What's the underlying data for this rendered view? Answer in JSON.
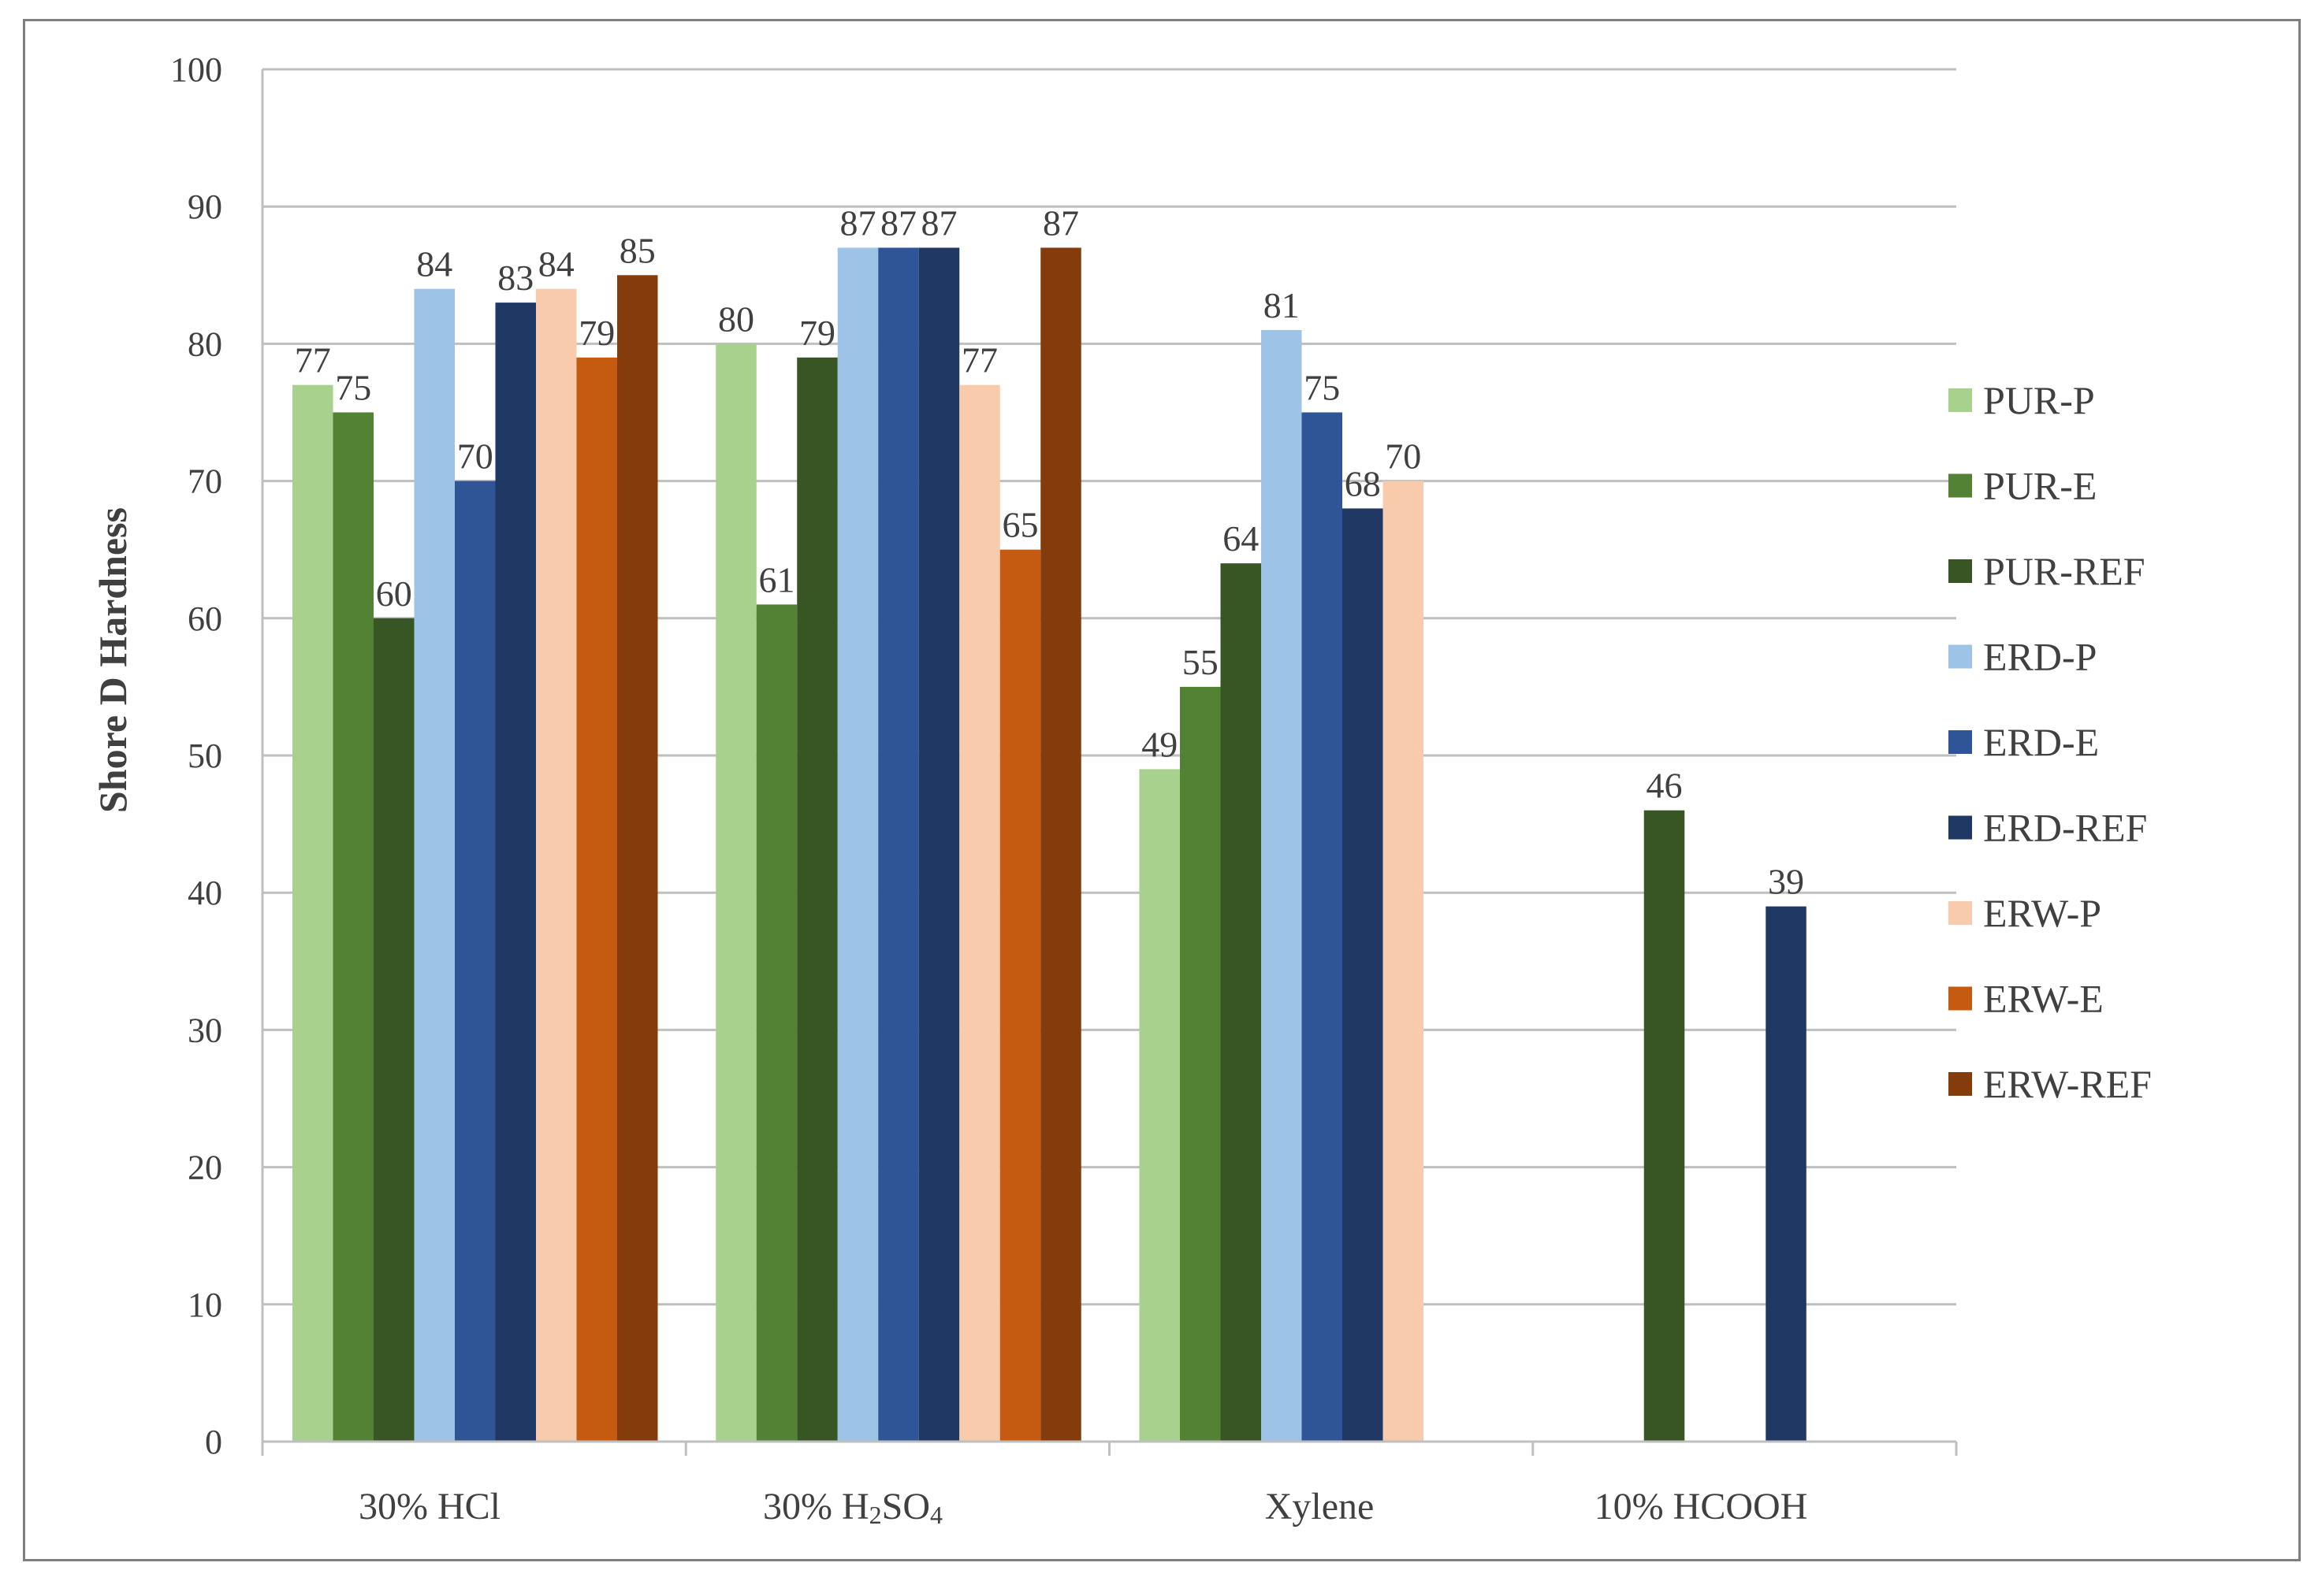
{
  "chart_data": {
    "type": "bar",
    "title": "",
    "xlabel": "",
    "ylabel": "Shore D  Hardness",
    "ylim": [
      0,
      100
    ],
    "yticks": [
      0,
      10,
      20,
      30,
      40,
      50,
      60,
      70,
      80,
      90,
      100
    ],
    "categories": [
      {
        "main": "30% HCl",
        "sub": "",
        "tail": ""
      },
      {
        "main": "30% H",
        "sub": "2",
        "tail": "SO",
        "sub2": "4"
      },
      {
        "main": "Xylene",
        "sub": "",
        "tail": ""
      },
      {
        "main": "10% HCOOH",
        "sub": "",
        "tail": ""
      }
    ],
    "grid": "horizontal",
    "legend_position": "right",
    "series": [
      {
        "name": "PUR-P",
        "color": "#a9d18e",
        "values": [
          77,
          80,
          49,
          null
        ]
      },
      {
        "name": "PUR-E",
        "color": "#548235",
        "values": [
          75,
          61,
          55,
          null
        ]
      },
      {
        "name": "PUR-REF",
        "color": "#375623",
        "values": [
          60,
          79,
          64,
          46
        ]
      },
      {
        "name": "ERD-P",
        "color": "#9dc3e6",
        "values": [
          84,
          87,
          81,
          null
        ]
      },
      {
        "name": "ERD-E",
        "color": "#2f5597",
        "values": [
          70,
          87,
          75,
          null
        ]
      },
      {
        "name": "ERD-REF",
        "color": "#1f3864",
        "values": [
          83,
          87,
          68,
          39
        ]
      },
      {
        "name": "ERW-P",
        "color": "#f8cbad",
        "values": [
          84,
          77,
          70,
          null
        ]
      },
      {
        "name": "ERW-E",
        "color": "#c55a11",
        "values": [
          79,
          65,
          null,
          null
        ]
      },
      {
        "name": "ERW-REF",
        "color": "#843c0c",
        "values": [
          85,
          87,
          null,
          null
        ]
      }
    ]
  }
}
